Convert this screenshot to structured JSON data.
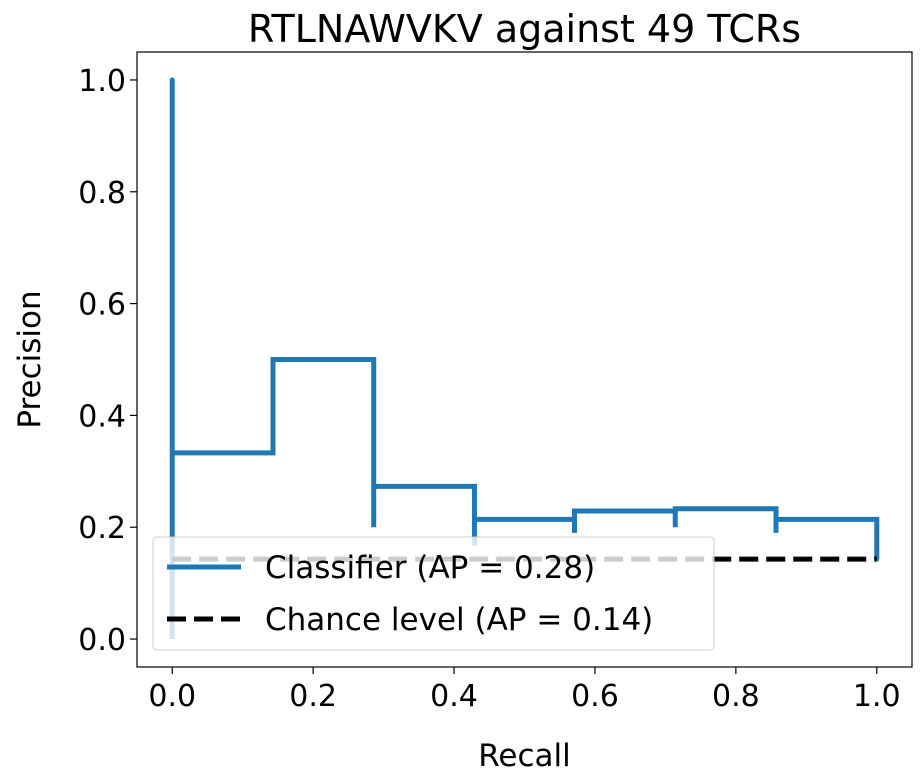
{
  "chart_data": {
    "type": "line",
    "title": "RTLNAWVKV against 49 TCRs",
    "xlabel": "Recall",
    "ylabel": "Precision",
    "xlim": [
      -0.05,
      1.05
    ],
    "ylim": [
      -0.05,
      1.05
    ],
    "xticks": [
      0.0,
      0.2,
      0.4,
      0.6,
      0.8,
      1.0
    ],
    "xtick_labels": [
      "0.0",
      "0.2",
      "0.4",
      "0.6",
      "0.8",
      "1.0"
    ],
    "yticks": [
      0.0,
      0.2,
      0.4,
      0.6,
      0.8,
      1.0
    ],
    "ytick_labels": [
      "0.0",
      "0.2",
      "0.4",
      "0.6",
      "0.8",
      "1.0"
    ],
    "grid": false,
    "legend_position": "lower-left",
    "series": [
      {
        "name": "Classifier (AP = 0.28)",
        "style": "steps-post",
        "color": "#1f77b4",
        "x": [
          0.0,
          0.0,
          0.0,
          0.143,
          0.143,
          0.286,
          0.286,
          0.286,
          0.429,
          0.429,
          0.429,
          0.571,
          0.571,
          0.571,
          0.714,
          0.714,
          0.714,
          0.857,
          0.857,
          0.857,
          1.0,
          1.0
        ],
        "y": [
          1.0,
          0.0,
          0.333,
          0.333,
          0.5,
          0.5,
          0.2,
          0.273,
          0.273,
          0.167,
          0.214,
          0.214,
          0.19,
          0.229,
          0.229,
          0.2,
          0.233,
          0.233,
          0.19,
          0.214,
          0.214,
          0.143
        ]
      },
      {
        "name": "Chance level (AP = 0.14)",
        "style": "dashed",
        "color": "#000000",
        "x": [
          0.0,
          1.0
        ],
        "y": [
          0.143,
          0.143
        ]
      }
    ]
  }
}
